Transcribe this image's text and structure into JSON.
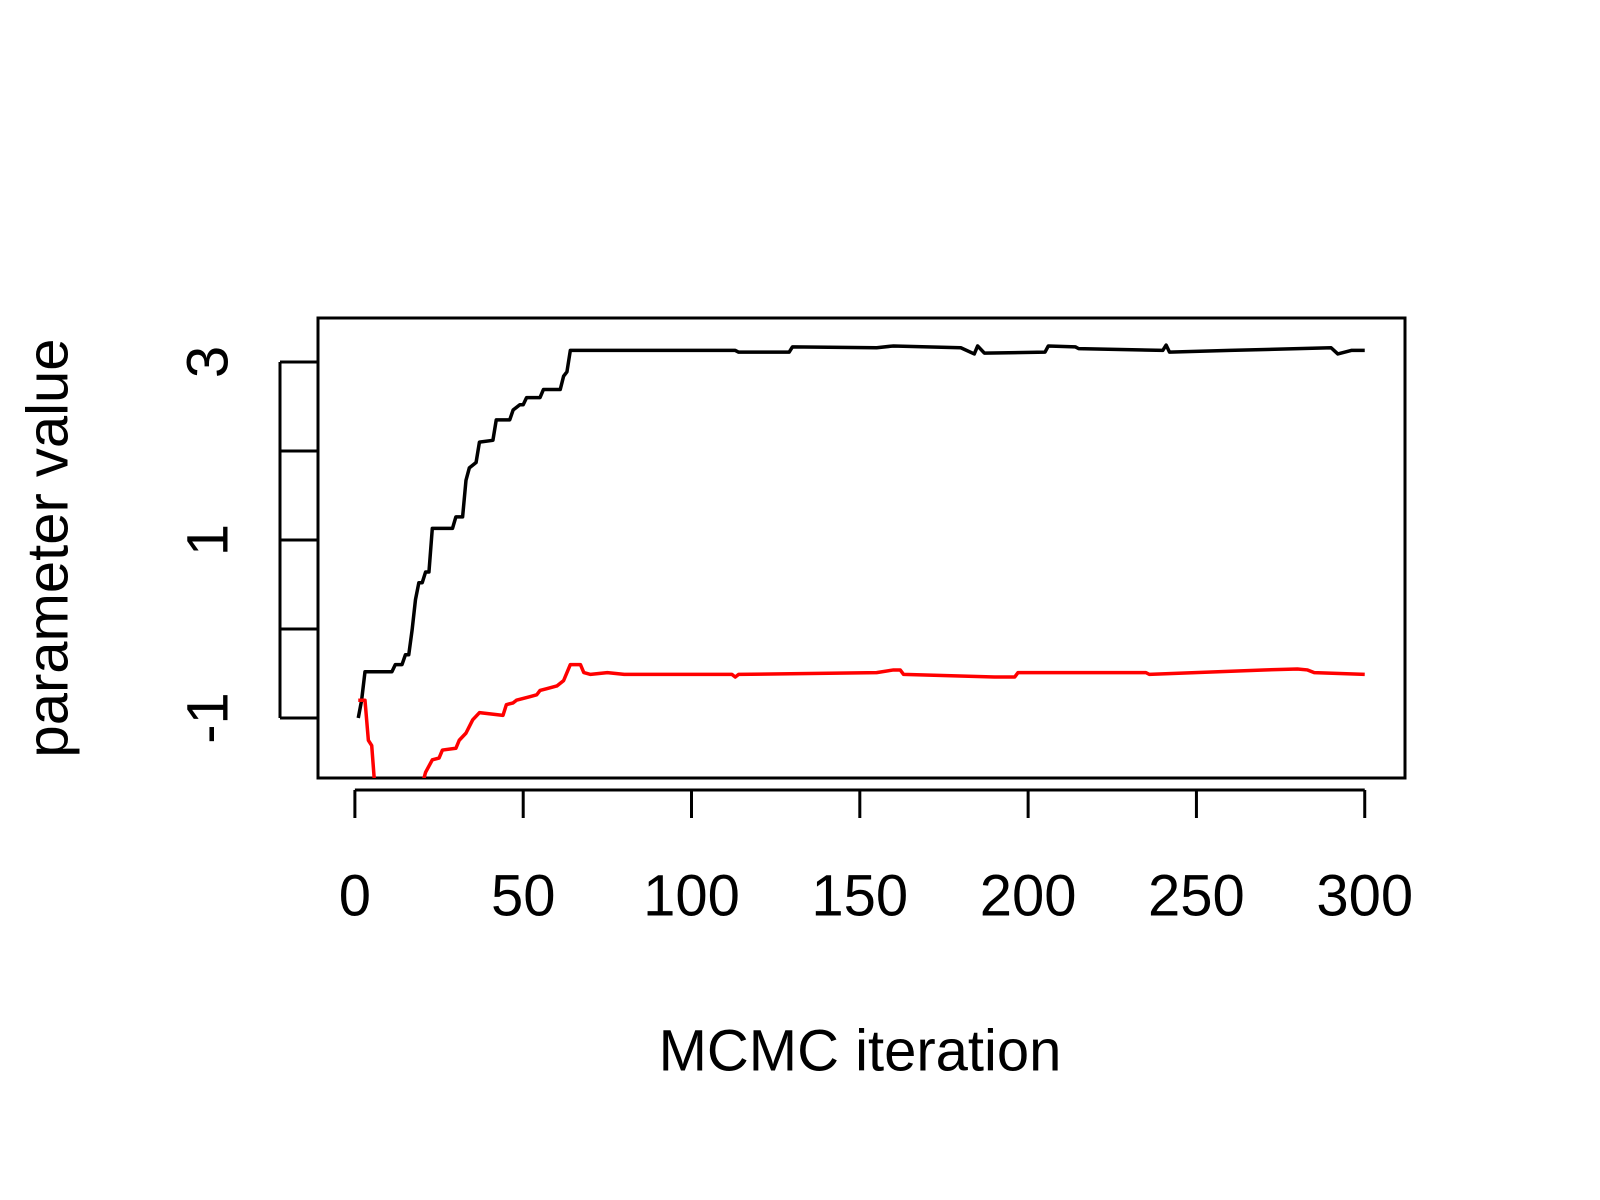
{
  "chart_data": {
    "type": "line",
    "xlabel": "MCMC iteration",
    "ylabel": "parameter value",
    "xlim": [
      -10.96,
      311.96
    ],
    "ylim": [
      -1.674,
      3.494
    ],
    "xticks": [
      0,
      50,
      100,
      150,
      200,
      250,
      300
    ],
    "yticks": [
      -1,
      1,
      3
    ],
    "yminor_ticks": [
      0,
      2
    ],
    "series": [
      {
        "color": "#000000",
        "x": [
          1,
          2,
          3,
          11,
          12,
          14,
          15,
          16,
          17,
          18,
          19,
          20,
          21,
          22,
          23,
          29,
          30,
          32,
          33,
          34,
          36,
          37,
          41,
          42,
          46,
          47,
          49,
          50,
          51,
          55,
          56,
          61,
          62,
          63,
          64,
          113,
          114,
          129,
          130,
          155,
          160,
          180,
          184,
          185,
          187,
          205,
          206,
          214,
          215,
          240,
          241,
          242,
          260,
          290,
          292,
          294,
          296,
          300
        ],
        "values": [
          -1.0,
          -0.8,
          -0.48,
          -0.48,
          -0.4,
          -0.4,
          -0.29,
          -0.29,
          -0.01,
          0.33,
          0.52,
          0.52,
          0.64,
          0.64,
          1.13,
          1.13,
          1.26,
          1.26,
          1.67,
          1.81,
          1.87,
          2.1,
          2.12,
          2.35,
          2.35,
          2.46,
          2.52,
          2.52,
          2.6,
          2.6,
          2.69,
          2.69,
          2.84,
          2.89,
          3.13,
          3.13,
          3.11,
          3.11,
          3.17,
          3.16,
          3.18,
          3.16,
          3.09,
          3.18,
          3.1,
          3.11,
          3.18,
          3.17,
          3.15,
          3.13,
          3.19,
          3.11,
          3.13,
          3.16,
          3.09,
          3.11,
          3.13,
          3.13
        ]
      },
      {
        "color": "#ff0000",
        "x": [
          1,
          3,
          4,
          5,
          6,
          7,
          19,
          20,
          21,
          23,
          25,
          26,
          30,
          31,
          33,
          35,
          37,
          44,
          45,
          47,
          48,
          52,
          54,
          55,
          57,
          60,
          62,
          64,
          67,
          68,
          70,
          75,
          80,
          112,
          113,
          114,
          155,
          160,
          162,
          163,
          190,
          196,
          197,
          235,
          236,
          270,
          280,
          283,
          285,
          300
        ],
        "values": [
          -0.8,
          -0.8,
          -1.25,
          -1.31,
          -1.81,
          -2.3,
          -2.0,
          -1.75,
          -1.61,
          -1.47,
          -1.45,
          -1.36,
          -1.34,
          -1.25,
          -1.17,
          -1.02,
          -0.94,
          -0.97,
          -0.85,
          -0.83,
          -0.8,
          -0.76,
          -0.74,
          -0.69,
          -0.67,
          -0.64,
          -0.58,
          -0.4,
          -0.4,
          -0.49,
          -0.51,
          -0.49,
          -0.51,
          -0.51,
          -0.54,
          -0.51,
          -0.49,
          -0.46,
          -0.46,
          -0.51,
          -0.54,
          -0.54,
          -0.49,
          -0.49,
          -0.51,
          -0.46,
          -0.45,
          -0.46,
          -0.49,
          -0.51
        ]
      }
    ]
  }
}
